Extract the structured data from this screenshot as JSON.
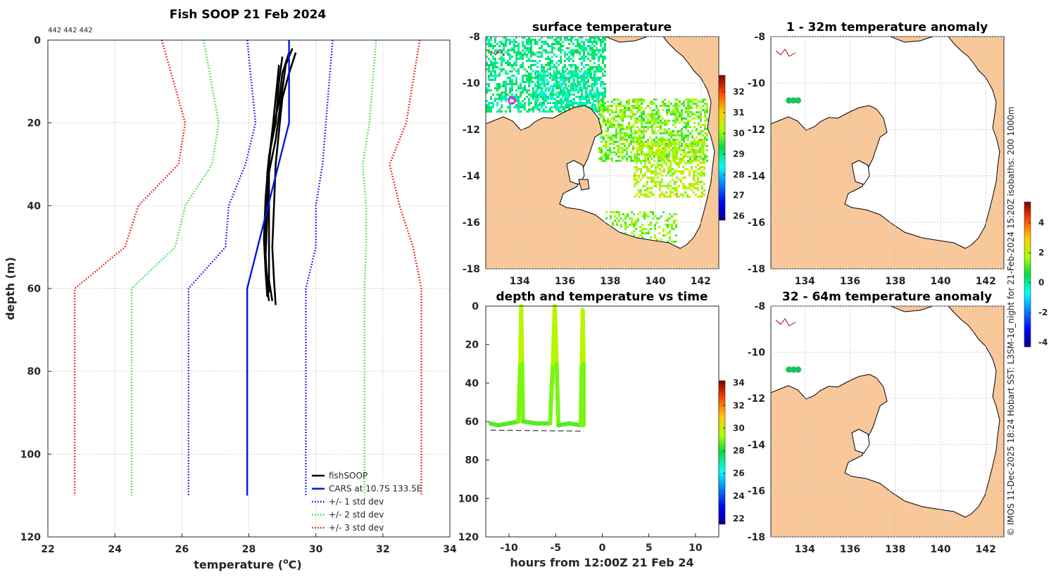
{
  "profile": {
    "title": "Fish SOOP 21 Feb 2024",
    "note": "442 442 442",
    "xlabel": "temperature (",
    "xlabel_sup": "o",
    "xlabel_end": "C)",
    "ylabel": "depth (m)",
    "xlim": [
      22,
      34
    ],
    "ylim": [
      0,
      120
    ],
    "xticks": [
      "22",
      "24",
      "26",
      "28",
      "30",
      "32",
      "34"
    ],
    "yticks": [
      "0",
      "20",
      "40",
      "60",
      "80",
      "100",
      "120"
    ]
  },
  "chart_data": [
    {
      "type": "line",
      "title": "Fish SOOP 21 Feb 2024",
      "xlabel": "temperature (oC)",
      "ylabel": "depth (m)",
      "xlim": [
        22,
        34
      ],
      "ylim": [
        120,
        0
      ],
      "series": [
        {
          "name": "fishSOOP",
          "color": "#000000",
          "style": "solid",
          "casts": [
            [
              [
                29.3,
                2
              ],
              [
                29.1,
                6
              ],
              [
                29.0,
                12
              ],
              [
                28.9,
                18
              ],
              [
                28.8,
                24
              ],
              [
                28.6,
                32
              ],
              [
                28.55,
                42
              ],
              [
                28.5,
                52
              ],
              [
                28.55,
                60
              ],
              [
                28.6,
                63
              ]
            ],
            [
              [
                29.2,
                3
              ],
              [
                29.0,
                8
              ],
              [
                28.9,
                15
              ],
              [
                28.7,
                22
              ],
              [
                28.6,
                30
              ],
              [
                28.6,
                40
              ],
              [
                28.6,
                50
              ],
              [
                28.6,
                58
              ],
              [
                28.7,
                63
              ]
            ],
            [
              [
                29.0,
                4
              ],
              [
                28.9,
                10
              ],
              [
                28.8,
                20
              ],
              [
                28.6,
                28
              ],
              [
                28.5,
                38
              ],
              [
                28.45,
                48
              ],
              [
                28.5,
                56
              ],
              [
                28.55,
                62
              ]
            ],
            [
              [
                29.4,
                3
              ],
              [
                29.2,
                8
              ],
              [
                29.0,
                14
              ],
              [
                28.9,
                22
              ],
              [
                28.8,
                30
              ],
              [
                28.75,
                40
              ],
              [
                28.7,
                50
              ],
              [
                28.75,
                58
              ],
              [
                28.8,
                64
              ]
            ],
            [
              [
                28.9,
                6
              ],
              [
                28.8,
                14
              ],
              [
                28.7,
                22
              ],
              [
                28.55,
                32
              ],
              [
                28.5,
                44
              ],
              [
                28.5,
                54
              ],
              [
                28.6,
                61
              ]
            ]
          ]
        },
        {
          "name": "CARS at 10.7S 133.5E",
          "color": "#0018e0",
          "style": "solid",
          "points": [
            [
              29.2,
              0
            ],
            [
              29.2,
              20
            ],
            [
              27.95,
              60
            ],
            [
              27.95,
              110
            ]
          ]
        },
        {
          "name": "+/- 1 std dev",
          "color": "#0000ff",
          "style": "dotted",
          "points_left": [
            [
              27.95,
              0
            ],
            [
              28.2,
              20
            ],
            [
              27.9,
              30
            ],
            [
              27.4,
              40
            ],
            [
              27.3,
              50
            ],
            [
              26.2,
              60
            ],
            [
              26.2,
              110
            ]
          ],
          "points_right": [
            [
              30.5,
              0
            ],
            [
              30.3,
              20
            ],
            [
              30.2,
              30
            ],
            [
              30.0,
              40
            ],
            [
              30.0,
              50
            ],
            [
              29.7,
              60
            ],
            [
              29.7,
              110
            ]
          ]
        },
        {
          "name": "+/- 2 std dev",
          "color": "#33dd33",
          "style": "dotted",
          "points_left": [
            [
              26.65,
              0
            ],
            [
              27.1,
              20
            ],
            [
              26.9,
              30
            ],
            [
              26.1,
              40
            ],
            [
              25.8,
              50
            ],
            [
              24.5,
              60
            ],
            [
              24.5,
              110
            ]
          ],
          "points_right": [
            [
              31.8,
              0
            ],
            [
              31.6,
              20
            ],
            [
              31.4,
              30
            ],
            [
              31.5,
              40
            ],
            [
              31.5,
              50
            ],
            [
              31.45,
              60
            ],
            [
              31.45,
              110
            ]
          ]
        },
        {
          "name": "+/- 3 std dev",
          "color": "#ee0000",
          "style": "dotted",
          "points_left": [
            [
              25.4,
              0
            ],
            [
              26.1,
              20
            ],
            [
              25.9,
              30
            ],
            [
              24.7,
              40
            ],
            [
              24.3,
              50
            ],
            [
              22.8,
              60
            ],
            [
              22.8,
              110
            ]
          ],
          "points_right": [
            [
              33.1,
              0
            ],
            [
              32.7,
              20
            ],
            [
              32.2,
              30
            ],
            [
              32.5,
              40
            ],
            [
              32.9,
              50
            ],
            [
              33.15,
              60
            ],
            [
              33.15,
              110
            ]
          ]
        }
      ]
    },
    {
      "type": "heatmap",
      "title": "surface temperature",
      "xlim": [
        132.5,
        142.8
      ],
      "ylim": [
        -18,
        -8
      ],
      "xticks": [
        "134",
        "136",
        "138",
        "140",
        "142"
      ],
      "yticks": [
        "-8",
        "-10",
        "-12",
        "-14",
        "-16",
        "-18"
      ],
      "colorbar": {
        "min": 25.8,
        "max": 32.8,
        "ticks": [
          "26",
          "27",
          "28",
          "29",
          "30",
          "31",
          "32"
        ]
      },
      "marker": {
        "lon": 133.5,
        "lat": -10.75,
        "color": "#ff00ff"
      }
    },
    {
      "type": "scatter",
      "title": "depth and temperature vs time",
      "xlabel": "hours from 12:00Z 21 Feb 24",
      "xlim": [
        -12.5,
        12.5
      ],
      "ylim": [
        120,
        0
      ],
      "xticks": [
        "-10",
        "-5",
        "0",
        "5",
        "10"
      ],
      "yticks": [
        "0",
        "20",
        "40",
        "60",
        "80",
        "100",
        "120"
      ],
      "colorbar": {
        "min": 21.5,
        "max": 34.2,
        "ticks": [
          "22",
          "24",
          "26",
          "28",
          "30",
          "32",
          "34"
        ]
      },
      "track": [
        [
          -12.0,
          61
        ],
        [
          -11.2,
          62
        ],
        [
          -10.0,
          61
        ],
        [
          -9.0,
          60
        ],
        [
          -8.8,
          30
        ],
        [
          -8.7,
          0
        ],
        [
          -8.6,
          30
        ],
        [
          -8.5,
          60
        ],
        [
          -7.0,
          61
        ],
        [
          -5.6,
          61
        ],
        [
          -5.3,
          30
        ],
        [
          -5.1,
          0
        ],
        [
          -4.9,
          30
        ],
        [
          -4.7,
          62
        ],
        [
          -3.5,
          61
        ],
        [
          -2.3,
          62
        ],
        [
          -2.2,
          30
        ],
        [
          -2.1,
          2
        ],
        [
          -2.0,
          30
        ],
        [
          -2.0,
          62
        ]
      ],
      "bottom_line": [
        [
          -12.0,
          64.5
        ],
        [
          -2.0,
          65
        ]
      ]
    },
    {
      "type": "heatmap",
      "title": "1 - 32m temperature anomaly",
      "xlim": [
        132.5,
        142.8
      ],
      "ylim": [
        -18,
        -8
      ],
      "xticks": [
        "134",
        "136",
        "138",
        "140",
        "142"
      ],
      "yticks": [
        "-8",
        "-10",
        "-12",
        "-14",
        "-16",
        "-18"
      ],
      "colorbar": {
        "min": -4.3,
        "max": 5.4,
        "ticks": [
          "-4",
          "-2",
          "0",
          "2",
          "4"
        ]
      },
      "points": [
        [
          133.3,
          -10.75
        ],
        [
          133.5,
          -10.75
        ],
        [
          133.7,
          -10.75
        ]
      ]
    },
    {
      "type": "heatmap",
      "title": "32 - 64m temperature anomaly",
      "xlim": [
        132.5,
        142.8
      ],
      "ylim": [
        -18,
        -8
      ],
      "xticks": [
        "134",
        "136",
        "138",
        "140",
        "142"
      ],
      "yticks": [
        "-8",
        "-10",
        "-12",
        "-14",
        "-16",
        "-18"
      ],
      "points": [
        [
          133.3,
          -10.75
        ],
        [
          133.5,
          -10.75
        ],
        [
          133.7,
          -10.75
        ]
      ]
    }
  ],
  "legend": [
    {
      "label": "fishSOOP",
      "color": "#000000",
      "style": "solid"
    },
    {
      "label": "CARS at 10.7S 133.5E",
      "color": "#0018e0",
      "style": "solid"
    },
    {
      "label": "+/- 1 std dev",
      "color": "#0000ff",
      "style": "dotted"
    },
    {
      "label": "+/- 2 std dev",
      "color": "#33dd33",
      "style": "dotted"
    },
    {
      "label": "+/- 3 std dev",
      "color": "#ee0000",
      "style": "dotted"
    }
  ],
  "maps": {
    "surface_title": "surface temperature",
    "time_title": "depth and temperature vs time",
    "time_xlabel": "hours from 12:00Z 21 Feb 24",
    "anom1_title": "1 - 32m temperature anomaly",
    "anom2_title": "32 - 64m temperature anomaly",
    "lon_ticks": [
      "134",
      "136",
      "138",
      "140",
      "142"
    ],
    "lat_ticks": [
      "-8",
      "-10",
      "-12",
      "-14",
      "-16",
      "-18"
    ],
    "sst_cbar_ticks": [
      "32",
      "31",
      "30",
      "29",
      "28",
      "27",
      "26"
    ],
    "time_cbar_ticks": [
      "34",
      "32",
      "30",
      "28",
      "26",
      "24",
      "22"
    ],
    "anom_cbar_ticks": [
      "4",
      "2",
      "0",
      "-2",
      "-4"
    ],
    "time_xticks": [
      "-10",
      "-5",
      "0",
      "5",
      "10"
    ],
    "time_yticks": [
      "0",
      "20",
      "40",
      "60",
      "80",
      "100",
      "120"
    ]
  },
  "credit": "© IMOS 11-Dec-2025 18:24 Hobart SST: L3SM-1d_night for 21-Feb-2024 15:20Z isobaths: 200  1000m",
  "colors": {
    "land": "#f8c89a",
    "coast": "#000000",
    "river": "#aa0000"
  }
}
